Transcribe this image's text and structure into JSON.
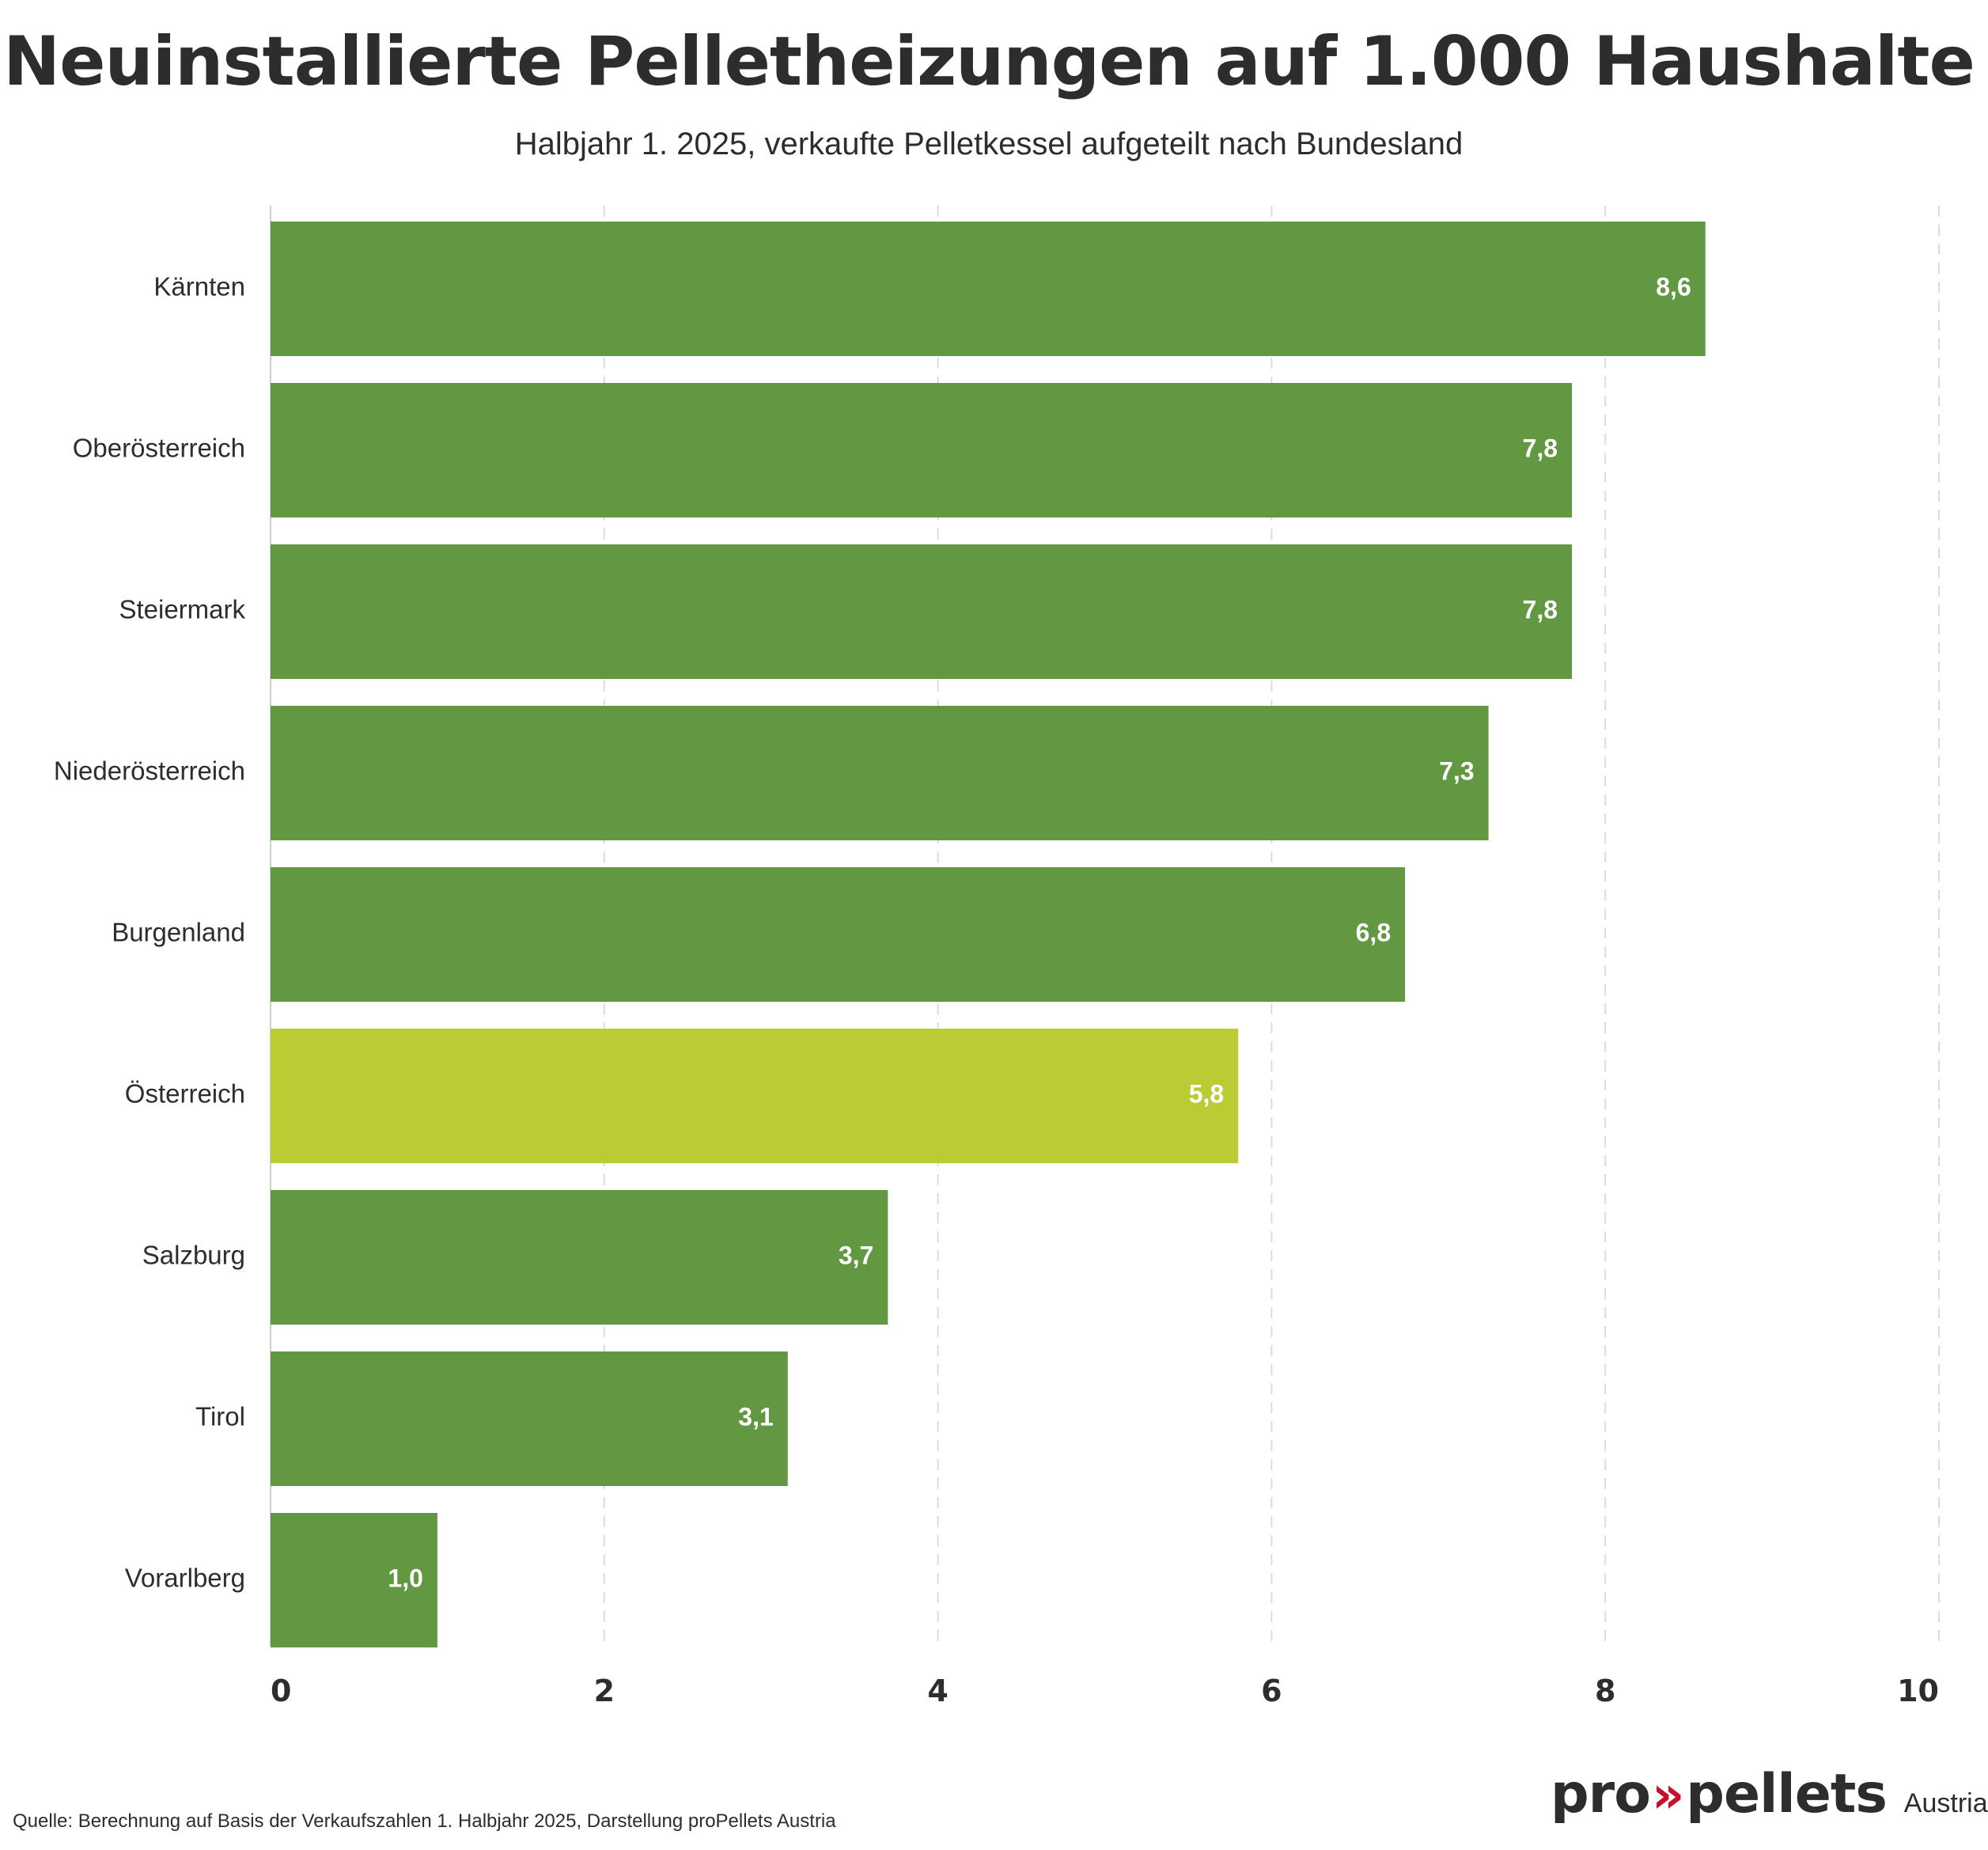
{
  "chart_data": {
    "type": "bar",
    "orientation": "horizontal",
    "title": "Neuinstallierte Pelletheizungen auf 1.000 Haushalte",
    "subtitle": "Halbjahr 1. 2025, verkaufte Pelletkessel aufgeteilt nach Bundesland",
    "categories": [
      "Kärnten",
      "Oberösterreich",
      "Steiermark",
      "Niederösterreich",
      "Burgenland",
      "Österreich",
      "Salzburg",
      "Tirol",
      "Vorarlberg"
    ],
    "values": [
      8.6,
      7.8,
      7.8,
      7.3,
      6.8,
      5.8,
      3.7,
      3.1,
      1.0
    ],
    "value_labels": [
      "8,6",
      "7,8",
      "7,8",
      "7,3",
      "6,8",
      "5,8",
      "3,7",
      "3,1",
      "1,0"
    ],
    "highlight_category": "Österreich",
    "xlim": [
      0,
      10
    ],
    "x_ticks": [
      0,
      2,
      4,
      6,
      8,
      10
    ],
    "xlabel": "",
    "ylabel": "",
    "grid": "vertical dashed",
    "colors": {
      "bar": "#629841",
      "highlight": "#bbcb33",
      "grid": "#dcdcdc",
      "axis": "#cfcfcf",
      "value_label": "#ffffff",
      "text": "#2d2d2d"
    }
  },
  "footer": {
    "source": "Quelle: Berechnung auf Basis der Verkaufszahlen 1. Halbjahr 2025, Darstellung proPellets Austria"
  },
  "logo": {
    "pro": "pro",
    "arrows": "»",
    "pellets": "pellets",
    "country": "Austria",
    "arrow_color": "#c8102e"
  }
}
